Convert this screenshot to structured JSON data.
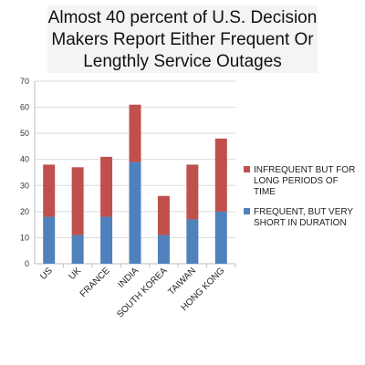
{
  "chart_data": {
    "type": "bar",
    "stacked": true,
    "title_lines": [
      "Almost 40 percent of U.S. Decision",
      "Makers Report Either Frequent Or",
      "Lengthly Service Outages"
    ],
    "categories": [
      "US",
      "UK",
      "FRANCE",
      "INDIA",
      "SOUTH KOREA",
      "TAIWAN",
      "HONG KONG"
    ],
    "series": [
      {
        "name": "FREQUENT, BUT VERY SHORT IN DURATION",
        "legend_lines": [
          "FREQUENT, BUT VERY",
          "SHORT IN DURATION"
        ],
        "color": "#4f81bd",
        "values": [
          18,
          11,
          18,
          39,
          11,
          17,
          20
        ]
      },
      {
        "name": "INFREQUENT BUT FOR LONG PERIODS OF TIME",
        "legend_lines": [
          "INFREQUENT BUT FOR",
          "LONG PERIODS OF",
          "TIME"
        ],
        "color": "#c0504d",
        "values": [
          20,
          26,
          23,
          22,
          15,
          21,
          28
        ]
      }
    ],
    "ylim": [
      0,
      70
    ],
    "yticks": [
      0,
      10,
      20,
      30,
      40,
      50,
      60,
      70
    ],
    "grid": true,
    "legend_position": "right",
    "xlabel": "",
    "ylabel": ""
  }
}
